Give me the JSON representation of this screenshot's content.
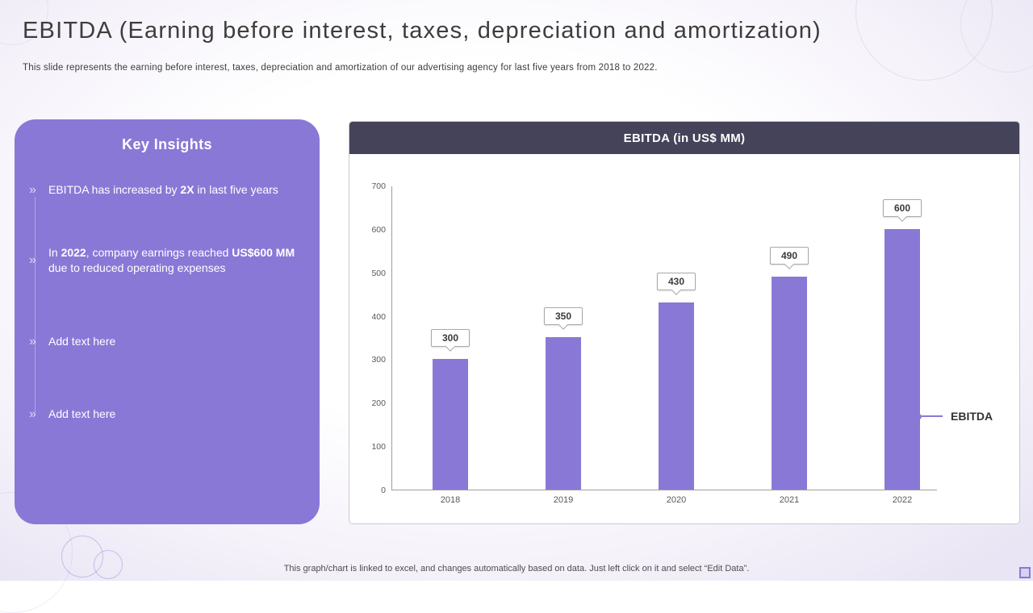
{
  "slide": {
    "title": "EBITDA (Earning before interest, taxes, depreciation and amortization)",
    "subtitle": "This slide represents the earning before interest, taxes, depreciation and amortization of our advertising agency for last five years from 2018 to 2022.",
    "footer": "This graph/chart is linked to excel, and changes automatically based on data. Just left click on it and select “Edit Data”."
  },
  "insights": {
    "heading": "Key Insights",
    "items": [
      {
        "t1": "EBITDA has increased by ",
        "b1": "2X",
        "t2": " in last five years"
      },
      {
        "t1": "In ",
        "b1": "2022",
        "t2": ", company earnings reached ",
        "b2": "US$600 MM",
        "t3": " due to reduced operating expenses"
      },
      {
        "t1": "Add text here"
      },
      {
        "t1": "Add text here"
      }
    ]
  },
  "chart_data": {
    "type": "bar",
    "title": "EBITDA (in US$ MM)",
    "categories": [
      "2018",
      "2019",
      "2020",
      "2021",
      "2022"
    ],
    "values": [
      300,
      350,
      430,
      490,
      600
    ],
    "series_name": "EBITDA",
    "xlabel": "",
    "ylabel": "",
    "ylim": [
      0,
      700
    ],
    "ytick_step": 100,
    "grid": false,
    "legend_position": "right",
    "bar_color": "#8a78d7"
  },
  "colors": {
    "accent_purple": "#8a78d7",
    "chart_header_dark": "#45435a",
    "title_text": "#3d3d3d"
  }
}
